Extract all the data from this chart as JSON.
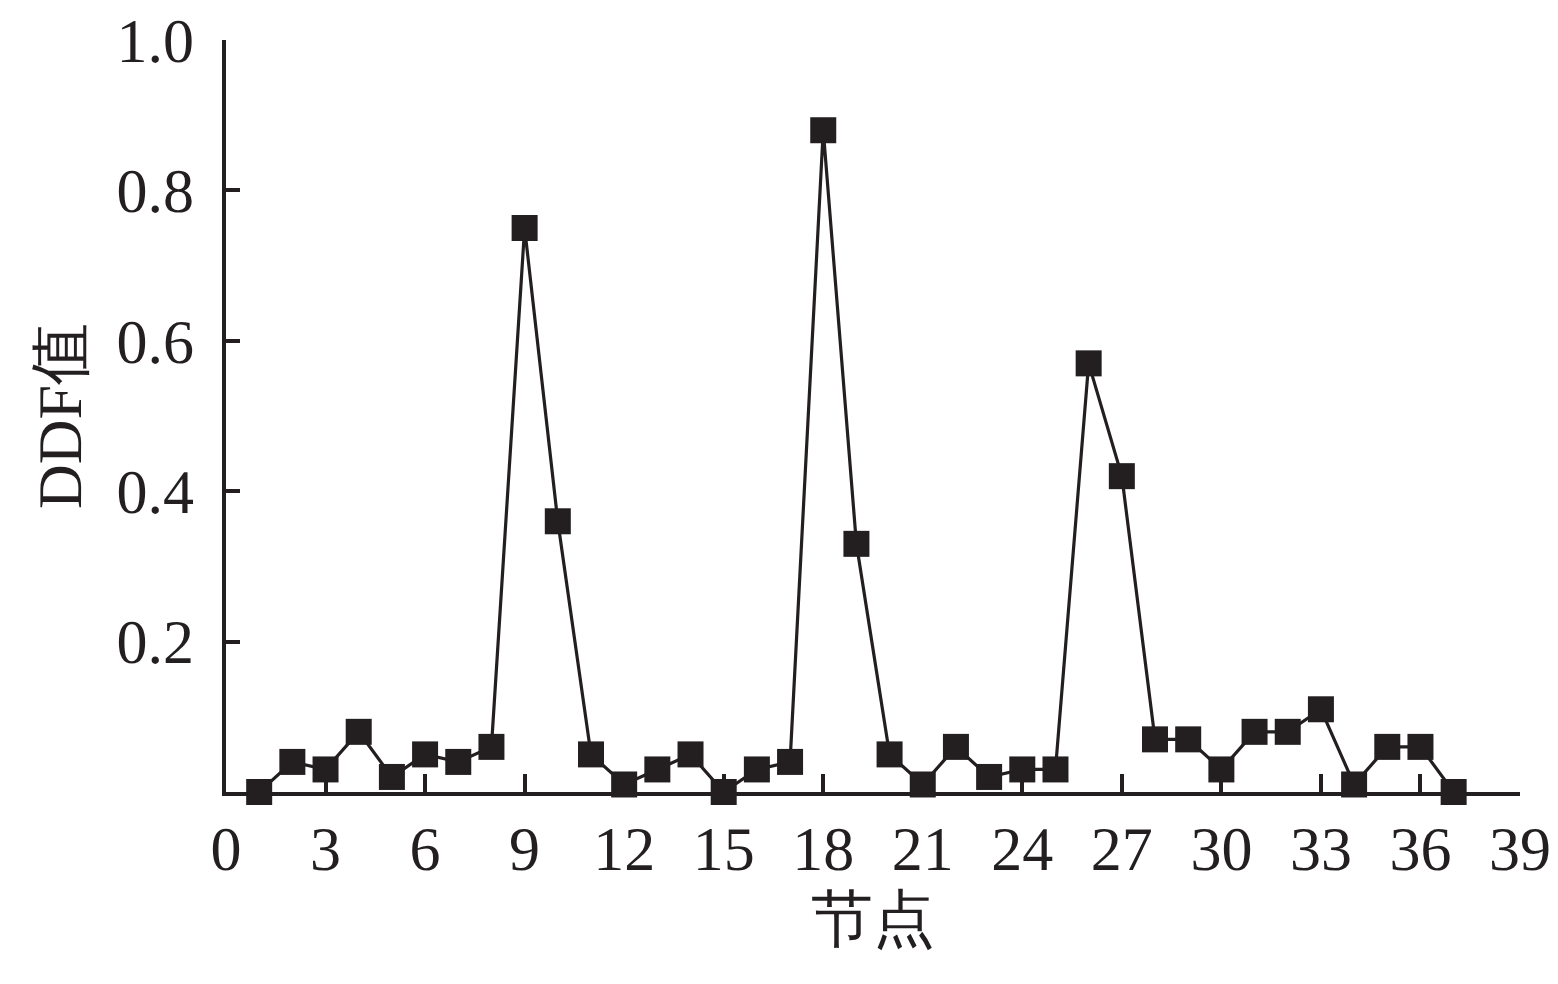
{
  "chart_data": {
    "type": "line",
    "xlabel": "节点",
    "ylabel": "DDF值",
    "x": [
      1,
      2,
      3,
      4,
      5,
      6,
      7,
      8,
      9,
      10,
      11,
      12,
      13,
      14,
      15,
      16,
      17,
      18,
      19,
      20,
      21,
      22,
      23,
      24,
      25,
      26,
      27,
      28,
      29,
      30,
      31,
      32,
      33,
      34,
      35,
      36,
      37
    ],
    "series": [
      {
        "color": "#231f20",
        "values": [
          0,
          0.04,
          0.03,
          0.08,
          0.02,
          0.05,
          0.04,
          0.06,
          0.75,
          0.36,
          0.05,
          0.01,
          0.03,
          0.05,
          0,
          0.03,
          0.04,
          0.88,
          0.33,
          0.05,
          0.01,
          0.06,
          0.02,
          0.03,
          0.03,
          0.57,
          0.42,
          0.07,
          0.07,
          0.03,
          0.08,
          0.08,
          0.11,
          0.01,
          0.06,
          0.06,
          0
        ]
      }
    ],
    "xlim": [
      0,
      39
    ],
    "xticks": [
      0,
      3,
      6,
      9,
      12,
      15,
      18,
      21,
      24,
      27,
      30,
      33,
      36,
      39
    ],
    "ylim": [
      0,
      1
    ],
    "yticks": [
      0.2,
      0.4,
      0.6,
      {
        "value": 0.8,
        "label": "0.8"
      },
      {
        "value": 1,
        "label": "1.0"
      }
    ],
    "marker": "square",
    "line_style": "solid"
  }
}
